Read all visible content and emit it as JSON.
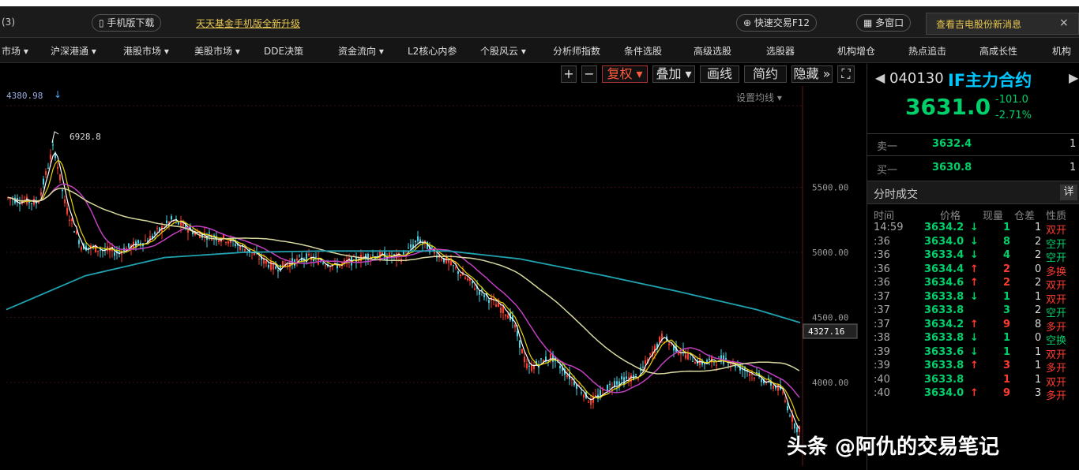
{
  "header": {
    "left_cut": "(3)",
    "app_download": "手机版下载",
    "promo": "天天基金手机版全新升级",
    "quick_trade": "快速交易F12",
    "multi_window": "多窗口",
    "news": "查看吉电股份新消息",
    "close": "×"
  },
  "menu": [
    "市场 ▾",
    "沪深港通 ▾",
    "港股市场 ▾",
    "美股市场 ▾",
    "DDE决策",
    "资金流向 ▾",
    "L2核心内参",
    "个股风云 ▾",
    "分析师指数",
    "条件选股",
    "高级选股",
    "选股器",
    "机构增仓",
    "热点追击",
    "高成长性",
    "机构"
  ],
  "toolbar": {
    "plus": "+",
    "minus": "−",
    "fuquan": "复权 ▾",
    "overlay": "叠加 ▾",
    "draw": "画线",
    "simple": "简约",
    "hide": "隐藏 »",
    "expand": "⛶"
  },
  "chart": {
    "top_value": "4380.98",
    "peak_label": "6928.8",
    "setting": "设置均线 ▾",
    "y_labels": [
      "5500.00",
      "5000.00",
      "4500.00",
      "4000.00"
    ],
    "current_price_tag": "4327.16"
  },
  "quote": {
    "code": "040130",
    "name": "IF主力合约",
    "price": "3631.0",
    "change": "-101.0",
    "change_pct": "-2.71%",
    "sell1_label": "卖一",
    "sell1_price": "3632.4",
    "sell1_vol": "1",
    "buy1_label": "买一",
    "buy1_price": "3630.8",
    "buy1_vol": "1",
    "ticks_title": "分时成交",
    "detail": "详"
  },
  "tick_headers": [
    "时间",
    "价格",
    "现量",
    "仓差",
    "性质"
  ],
  "ticks": [
    {
      "t": "14:59",
      "p": "3634.2",
      "a": "↓",
      "v": "1",
      "o": "1",
      "n": "双开",
      "vc": "dn",
      "nc": "up"
    },
    {
      "t": ":36",
      "p": "3634.0",
      "a": "↓",
      "v": "8",
      "o": "2",
      "n": "空开",
      "vc": "dn",
      "nc": "dn"
    },
    {
      "t": ":36",
      "p": "3633.4",
      "a": "↓",
      "v": "4",
      "o": "2",
      "n": "空开",
      "vc": "dn",
      "nc": "dn"
    },
    {
      "t": ":36",
      "p": "3634.4",
      "a": "↑",
      "v": "2",
      "o": "0",
      "n": "多换",
      "vc": "up",
      "nc": "up"
    },
    {
      "t": ":36",
      "p": "3634.6",
      "a": "↑",
      "v": "2",
      "o": "2",
      "n": "双开",
      "vc": "up",
      "nc": "up"
    },
    {
      "t": ":37",
      "p": "3633.8",
      "a": "↓",
      "v": "1",
      "o": "1",
      "n": "双开",
      "vc": "dn",
      "nc": "up"
    },
    {
      "t": ":37",
      "p": "3633.8",
      "a": "",
      "v": "3",
      "o": "2",
      "n": "空开",
      "vc": "dn",
      "nc": "dn"
    },
    {
      "t": ":37",
      "p": "3634.2",
      "a": "↑",
      "v": "9",
      "o": "8",
      "n": "多开",
      "vc": "up",
      "nc": "up"
    },
    {
      "t": ":38",
      "p": "3633.8",
      "a": "↓",
      "v": "1",
      "o": "0",
      "n": "空换",
      "vc": "dn",
      "nc": "dn"
    },
    {
      "t": ":39",
      "p": "3633.6",
      "a": "↓",
      "v": "1",
      "o": "1",
      "n": "双开",
      "vc": "dn",
      "nc": "up"
    },
    {
      "t": ":39",
      "p": "3633.8",
      "a": "↑",
      "v": "3",
      "o": "1",
      "n": "多开",
      "vc": "up",
      "nc": "up"
    },
    {
      "t": ":40",
      "p": "3633.8",
      "a": "",
      "v": "1",
      "o": "1",
      "n": "双开",
      "vc": "up",
      "nc": "up"
    },
    {
      "t": ":40",
      "p": "3634.0",
      "a": "↑",
      "v": "9",
      "o": "3",
      "n": "多开",
      "vc": "up",
      "nc": "up"
    }
  ],
  "watermark": "头条 @阿仇的交易笔记",
  "colors": {
    "up": "#ff3b30",
    "down": "#00d06a",
    "ma5": "#ffffff",
    "ma10": "#e8d400",
    "ma20": "#c040c0",
    "ma60": "#d8d8a0",
    "ma120": "#1fa3b0",
    "accent": "#00c8ff"
  }
}
